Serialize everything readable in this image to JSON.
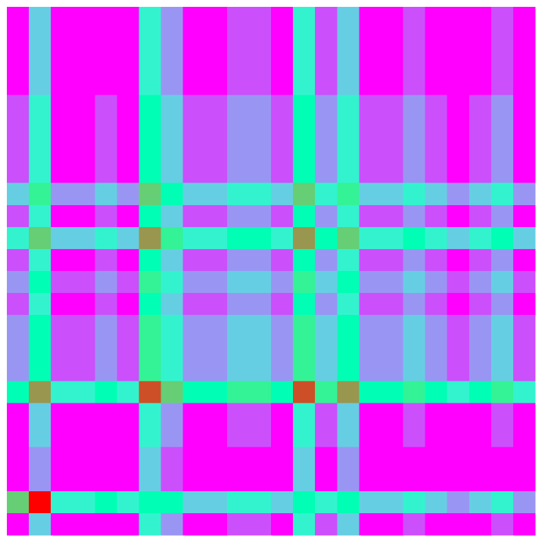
{
  "chart_data": {
    "type": "heatmap",
    "colormap": "rainbow",
    "vlim": [
      0,
      1
    ],
    "values": [
      [
        0,
        0.3,
        0,
        0,
        0,
        0,
        0.4,
        0.2,
        0,
        0,
        0.1,
        0.1,
        0,
        0.4,
        0.1,
        0.3,
        0,
        0,
        0.1,
        0,
        0,
        0,
        0.1,
        0
      ],
      [
        0,
        0.3,
        0,
        0,
        0,
        0,
        0.4,
        0.2,
        0,
        0,
        0.1,
        0.1,
        0,
        0.4,
        0.1,
        0.3,
        0,
        0,
        0.1,
        0,
        0,
        0,
        0.1,
        0
      ],
      [
        0,
        0.3,
        0,
        0,
        0,
        0,
        0.4,
        0.2,
        0,
        0,
        0.1,
        0.1,
        0,
        0.4,
        0.1,
        0.3,
        0,
        0,
        0.1,
        0,
        0,
        0,
        0.1,
        0
      ],
      [
        0,
        0.3,
        0,
        0,
        0,
        0,
        0.4,
        0.2,
        0,
        0,
        0.1,
        0.1,
        0,
        0.4,
        0.1,
        0.3,
        0,
        0,
        0.1,
        0,
        0,
        0,
        0.1,
        0
      ],
      [
        0.1,
        0.4,
        0,
        0,
        0.1,
        0,
        0.5,
        0.3,
        0.1,
        0.1,
        0.2,
        0.2,
        0.1,
        0.5,
        0.2,
        0.4,
        0.1,
        0.1,
        0.2,
        0.1,
        0,
        0.1,
        0.2,
        0
      ],
      [
        0.1,
        0.4,
        0,
        0,
        0.1,
        0,
        0.5,
        0.3,
        0.1,
        0.1,
        0.2,
        0.2,
        0.1,
        0.5,
        0.2,
        0.4,
        0.1,
        0.1,
        0.2,
        0.1,
        0,
        0.1,
        0.2,
        0
      ],
      [
        0.1,
        0.4,
        0,
        0,
        0.1,
        0,
        0.5,
        0.3,
        0.1,
        0.1,
        0.2,
        0.2,
        0.1,
        0.5,
        0.2,
        0.4,
        0.1,
        0.1,
        0.2,
        0.1,
        0,
        0.1,
        0.2,
        0
      ],
      [
        0.1,
        0.4,
        0,
        0,
        0.1,
        0,
        0.5,
        0.3,
        0.1,
        0.1,
        0.2,
        0.2,
        0.1,
        0.5,
        0.2,
        0.4,
        0.1,
        0.1,
        0.2,
        0.1,
        0,
        0.1,
        0.2,
        0
      ],
      [
        0.3,
        0.6,
        0.2,
        0.2,
        0.3,
        0.2,
        0.7,
        0.5,
        0.3,
        0.3,
        0.4,
        0.4,
        0.3,
        0.7,
        0.4,
        0.6,
        0.3,
        0.3,
        0.4,
        0.3,
        0.2,
        0.3,
        0.4,
        0.2
      ],
      [
        0.1,
        0.4,
        0,
        0,
        0.1,
        0,
        0.5,
        0.3,
        0.1,
        0.1,
        0.2,
        0.2,
        0.1,
        0.5,
        0.2,
        0.4,
        0.1,
        0.1,
        0.2,
        0.1,
        0,
        0.1,
        0.2,
        0
      ],
      [
        0.4,
        0.7,
        0.3,
        0.3,
        0.4,
        0.3,
        0.8,
        0.6,
        0.4,
        0.4,
        0.5,
        0.5,
        0.4,
        0.8,
        0.5,
        0.7,
        0.4,
        0.4,
        0.5,
        0.4,
        0.3,
        0.4,
        0.5,
        0.3
      ],
      [
        0.1,
        0.4,
        0,
        0,
        0.1,
        0,
        0.5,
        0.3,
        0.1,
        0.1,
        0.2,
        0.2,
        0.1,
        0.5,
        0.2,
        0.4,
        0.1,
        0.1,
        0.2,
        0.1,
        0,
        0.1,
        0.2,
        0
      ],
      [
        0.2,
        0.5,
        0.1,
        0.1,
        0.2,
        0.1,
        0.6,
        0.4,
        0.2,
        0.2,
        0.3,
        0.3,
        0.2,
        0.6,
        0.3,
        0.5,
        0.2,
        0.2,
        0.3,
        0.2,
        0.1,
        0.2,
        0.3,
        0.1
      ],
      [
        0.1,
        0.4,
        0,
        0,
        0.1,
        0,
        0.5,
        0.3,
        0.1,
        0.1,
        0.2,
        0.2,
        0.1,
        0.5,
        0.2,
        0.4,
        0.1,
        0.1,
        0.2,
        0.1,
        0,
        0.1,
        0.2,
        0
      ],
      [
        0.2,
        0.5,
        0.1,
        0.1,
        0.2,
        0.1,
        0.6,
        0.4,
        0.2,
        0.2,
        0.3,
        0.3,
        0.2,
        0.6,
        0.3,
        0.5,
        0.2,
        0.2,
        0.3,
        0.2,
        0.1,
        0.2,
        0.3,
        0.1
      ],
      [
        0.2,
        0.5,
        0.1,
        0.1,
        0.2,
        0.1,
        0.6,
        0.4,
        0.2,
        0.2,
        0.3,
        0.3,
        0.2,
        0.6,
        0.3,
        0.5,
        0.2,
        0.2,
        0.3,
        0.2,
        0.1,
        0.2,
        0.3,
        0.1
      ],
      [
        0.2,
        0.5,
        0.1,
        0.1,
        0.2,
        0.1,
        0.6,
        0.4,
        0.2,
        0.2,
        0.3,
        0.3,
        0.2,
        0.6,
        0.3,
        0.5,
        0.2,
        0.2,
        0.3,
        0.2,
        0.1,
        0.2,
        0.3,
        0.1
      ],
      [
        0.5,
        0.8,
        0.4,
        0.4,
        0.5,
        0.4,
        0.9,
        0.7,
        0.5,
        0.5,
        0.6,
        0.6,
        0.5,
        0.9,
        0.6,
        0.8,
        0.5,
        0.5,
        0.6,
        0.5,
        0.4,
        0.5,
        0.6,
        0.4
      ],
      [
        0,
        0.3,
        0,
        0,
        0,
        0,
        0.4,
        0.2,
        0,
        0,
        0.1,
        0.1,
        0,
        0.4,
        0.1,
        0.3,
        0,
        0,
        0.1,
        0,
        0,
        0,
        0.1,
        0
      ],
      [
        0,
        0.3,
        0,
        0,
        0,
        0,
        0.4,
        0.2,
        0,
        0,
        0.1,
        0.1,
        0,
        0.4,
        0.1,
        0.3,
        0,
        0,
        0.1,
        0,
        0,
        0,
        0.1,
        0
      ],
      [
        0,
        0.2,
        0,
        0,
        0,
        0,
        0.3,
        0.1,
        0,
        0,
        0,
        0,
        0,
        0.3,
        0,
        0.2,
        0,
        0,
        0,
        0,
        0,
        0,
        0,
        0
      ],
      [
        0,
        0.2,
        0,
        0,
        0,
        0,
        0.3,
        0.1,
        0,
        0,
        0,
        0,
        0,
        0.3,
        0,
        0.2,
        0,
        0,
        0,
        0,
        0,
        0,
        0,
        0
      ],
      [
        0.7,
        1,
        0.4,
        0.4,
        0.5,
        0.4,
        0.5,
        0.5,
        0.3,
        0.3,
        0.4,
        0.4,
        0.3,
        0.5,
        0.4,
        0.5,
        0.3,
        0.3,
        0.4,
        0.3,
        0.2,
        0.3,
        0.4,
        0.2
      ],
      [
        0,
        0.3,
        0,
        0,
        0,
        0,
        0.4,
        0.2,
        0,
        0,
        0.1,
        0.1,
        0,
        0.4,
        0.1,
        0.3,
        0,
        0,
        0.1,
        0,
        0,
        0,
        0.1,
        0
      ]
    ]
  }
}
